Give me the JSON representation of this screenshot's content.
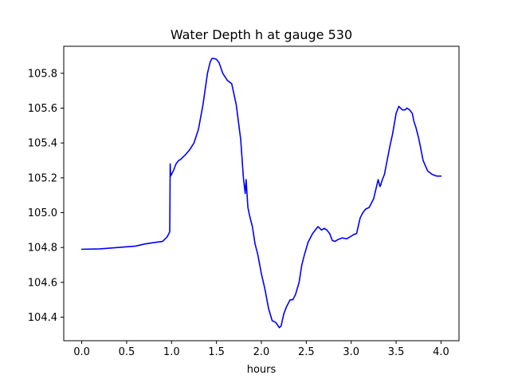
{
  "chart_data": {
    "type": "line",
    "title": "Water Depth h at gauge 530",
    "xlabel": "hours",
    "ylabel": "",
    "xlim": [
      -0.2,
      4.2
    ],
    "ylim": [
      104.265,
      105.955
    ],
    "x_ticks": [
      0.0,
      0.5,
      1.0,
      1.5,
      2.0,
      2.5,
      3.0,
      3.5,
      4.0
    ],
    "x_tick_labels": [
      "0.0",
      "0.5",
      "1.0",
      "1.5",
      "2.0",
      "2.5",
      "3.0",
      "3.5",
      "4.0"
    ],
    "y_ticks": [
      104.4,
      104.6,
      104.8,
      105.0,
      105.2,
      105.4,
      105.6,
      105.8
    ],
    "y_tick_labels": [
      "104.4",
      "104.6",
      "104.8",
      "105.0",
      "105.2",
      "105.4",
      "105.6",
      "105.8"
    ],
    "grid": false,
    "series": [
      {
        "color": "#0000ff",
        "x": [
          0.0,
          0.2,
          0.4,
          0.6,
          0.7,
          0.8,
          0.9,
          0.95,
          0.98,
          0.985,
          0.99,
          1.0,
          1.02,
          1.05,
          1.08,
          1.1,
          1.15,
          1.2,
          1.25,
          1.3,
          1.35,
          1.4,
          1.43,
          1.45,
          1.47,
          1.5,
          1.53,
          1.57,
          1.62,
          1.67,
          1.72,
          1.77,
          1.8,
          1.82,
          1.83,
          1.84,
          1.85,
          1.87,
          1.9,
          1.93,
          1.96,
          2.0,
          2.04,
          2.08,
          2.12,
          2.16,
          2.2,
          2.22,
          2.25,
          2.28,
          2.32,
          2.35,
          2.38,
          2.42,
          2.45,
          2.48,
          2.52,
          2.57,
          2.6,
          2.63,
          2.67,
          2.7,
          2.73,
          2.76,
          2.79,
          2.82,
          2.85,
          2.9,
          2.95,
          3.0,
          3.03,
          3.06,
          3.1,
          3.13,
          3.16,
          3.2,
          3.25,
          3.3,
          3.32,
          3.33,
          3.34,
          3.37,
          3.4,
          3.43,
          3.46,
          3.5,
          3.53,
          3.57,
          3.6,
          3.62,
          3.65,
          3.68,
          3.7,
          3.72,
          3.75,
          3.77,
          3.8,
          3.85,
          3.9,
          3.95,
          4.0
        ],
        "y": [
          104.79,
          104.792,
          104.8,
          104.808,
          104.82,
          104.828,
          104.835,
          104.86,
          104.89,
          105.28,
          105.21,
          105.22,
          105.24,
          105.28,
          105.3,
          105.305,
          105.33,
          105.36,
          105.4,
          105.48,
          105.62,
          105.8,
          105.865,
          105.885,
          105.885,
          105.88,
          105.86,
          105.8,
          105.76,
          105.74,
          105.62,
          105.42,
          105.2,
          105.11,
          105.19,
          105.11,
          105.03,
          104.98,
          104.92,
          104.82,
          104.76,
          104.65,
          104.56,
          104.45,
          104.38,
          104.37,
          104.34,
          104.35,
          104.42,
          104.46,
          104.5,
          104.5,
          104.53,
          104.6,
          104.7,
          104.76,
          104.83,
          104.88,
          104.9,
          104.92,
          104.9,
          104.91,
          104.9,
          104.88,
          104.84,
          104.835,
          104.845,
          104.855,
          104.85,
          104.865,
          104.875,
          104.88,
          104.97,
          105.0,
          105.02,
          105.03,
          105.08,
          105.19,
          105.15,
          105.16,
          105.18,
          105.22,
          105.3,
          105.38,
          105.45,
          105.57,
          105.61,
          105.59,
          105.59,
          105.6,
          105.59,
          105.57,
          105.52,
          105.49,
          105.43,
          105.38,
          105.3,
          105.24,
          105.22,
          105.21,
          105.21
        ]
      }
    ]
  }
}
